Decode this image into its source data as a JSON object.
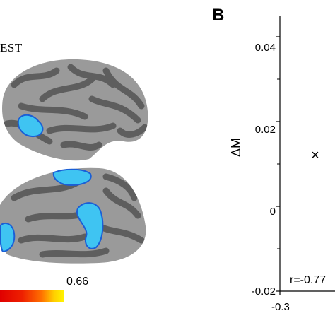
{
  "panel_a": {
    "label_text": "EST",
    "colorbar_max": "0.66",
    "colors": {
      "brain_light": "#9a9a9a",
      "brain_dark": "#5e5e5e",
      "blob_fill": "#3fc4f2",
      "blob_edge": "#1a5fd6"
    }
  },
  "panel_b": {
    "letter": "B",
    "ylabel": "ΔM",
    "yticks": [
      "0.04",
      "0.02",
      "0",
      "-0.02"
    ],
    "xticks": [
      "-0.3"
    ],
    "correlation": "r=-0.77",
    "marker": "×"
  },
  "chart_data": {
    "type": "scatter",
    "title": "",
    "xlabel": "",
    "ylabel": "ΔM",
    "ylim": [
      -0.02,
      0.045
    ],
    "yticks": [
      0.04,
      0.02,
      0,
      -0.02
    ],
    "xticks": [
      -0.3
    ],
    "points": [
      {
        "x": -0.3,
        "y": 0.012
      }
    ],
    "annotation": "r=-0.77"
  }
}
